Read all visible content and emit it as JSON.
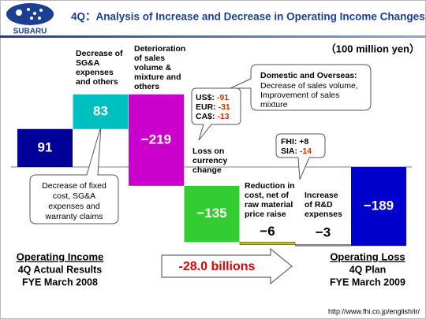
{
  "header": {
    "logo_text": "SUBARU",
    "url": "http://www.fhi.co.jp/english/ir/"
  },
  "chart_data": {
    "type": "waterfall",
    "title": "4Q：Analysis of Increase and Decrease in Operating Income Changes",
    "unit": "（100 million yen）",
    "values": [
      91,
      83,
      -219,
      -135,
      -6,
      -3,
      -189
    ],
    "value_labels": [
      "91",
      "83",
      "−219",
      "−135",
      "−6",
      "−3",
      "−189"
    ],
    "measure": [
      "absolute",
      "relative",
      "relative",
      "relative",
      "relative",
      "relative",
      "total"
    ],
    "colors": [
      "#000099",
      "#00bfbf",
      "#cc00cc",
      "#33cc33",
      "#cccc00",
      "#999999",
      "#0000cc"
    ],
    "annotations": {
      "sga": [
        "Decrease of",
        "SG&A",
        "expenses",
        "and others"
      ],
      "sales": [
        "Deterioration",
        "of sales",
        "volume &",
        "mixture and",
        "others"
      ],
      "currency_loss": [
        "Loss on",
        "currency",
        "change"
      ],
      "cost": [
        "Reduction in",
        "cost, net of",
        "raw material",
        "price raise"
      ],
      "rnd": [
        "Increase",
        "of R&D",
        "expenses"
      ]
    },
    "callouts": {
      "market": {
        "heading": "Domestic and Overseas:",
        "lines": [
          "Decrease of sales volume,",
          "Improvement of sales",
          "mixture"
        ]
      },
      "currency": [
        {
          "label": "US$:",
          "value": "-91"
        },
        {
          "label": "EUR:",
          "value": "-31"
        },
        {
          "label": "CA$:",
          "value": "-13"
        }
      ],
      "affiliates": [
        {
          "label": "FHI:",
          "value": "+8"
        },
        {
          "label": "SIA:",
          "value": "-14"
        }
      ],
      "fixed_cost": [
        "Decrease of fixed",
        "cost, SG&A",
        "expenses and",
        "warranty claims"
      ]
    },
    "start_label": {
      "title": "Operating Income",
      "lines": [
        "4Q Actual Results",
        "FYE March 2008"
      ]
    },
    "end_label": {
      "title": "Operating Loss",
      "lines": [
        "4Q Plan",
        "FYE March 2009"
      ]
    },
    "change": "-28.0 billions"
  }
}
